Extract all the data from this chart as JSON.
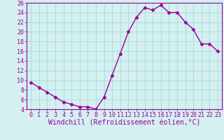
{
  "x": [
    0,
    1,
    2,
    3,
    4,
    5,
    6,
    7,
    8,
    9,
    10,
    11,
    12,
    13,
    14,
    15,
    16,
    17,
    18,
    19,
    20,
    21,
    22,
    23
  ],
  "y": [
    9.5,
    8.5,
    7.5,
    6.5,
    5.5,
    5.0,
    4.5,
    4.5,
    4.0,
    6.5,
    11.0,
    15.5,
    20.0,
    23.0,
    25.0,
    24.5,
    25.5,
    24.0,
    24.0,
    22.0,
    20.5,
    17.5,
    17.5,
    16.0
  ],
  "xlabel": "Windchill (Refroidissement éolien,°C)",
  "ylim": [
    4,
    26
  ],
  "xlim": [
    -0.5,
    23.5
  ],
  "yticks": [
    4,
    6,
    8,
    10,
    12,
    14,
    16,
    18,
    20,
    22,
    24,
    26
  ],
  "xticks": [
    0,
    1,
    2,
    3,
    4,
    5,
    6,
    7,
    8,
    9,
    10,
    11,
    12,
    13,
    14,
    15,
    16,
    17,
    18,
    19,
    20,
    21,
    22,
    23
  ],
  "line_color": "#990099",
  "marker": "D",
  "marker_size": 2.5,
  "bg_color": "#d4f0f0",
  "grid_color": "#b0dede",
  "xlabel_fontsize": 7,
  "tick_fontsize": 6,
  "linewidth": 1.0
}
